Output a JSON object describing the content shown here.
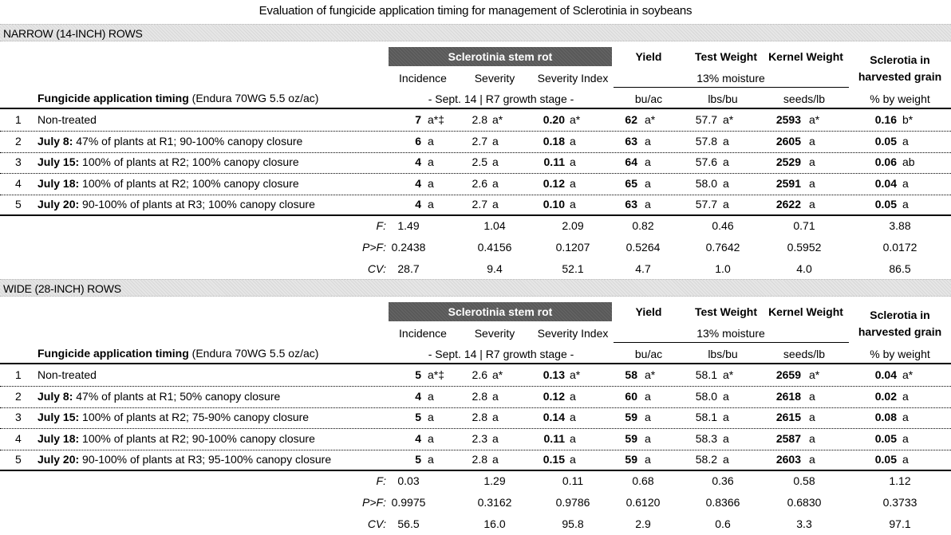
{
  "title": "Evaluation of fungicide application timing for management of Sclerotinia in soybeans",
  "headers": {
    "ssr": "Sclerotinia stem rot",
    "yield": "Yield",
    "test_weight": "Test Weight",
    "kernel_weight": "Kernel Weight",
    "sclerotia_1": "Sclerotia in",
    "sclerotia_2": "harvested grain",
    "incidence": "Incidence",
    "severity": "Severity",
    "severity_index": "Severity Index",
    "moisture": "13% moisture",
    "timing_bold": "Fungicide application timing",
    "timing_rest": " (Endura 70WG 5.5 oz/ac)",
    "date_stage": "- Sept. 14  |  R7 growth stage  -",
    "u_yield": "bu/ac",
    "u_tw": "lbs/bu",
    "u_kw": "seeds/lb",
    "u_scl": "% by weight"
  },
  "sections": [
    {
      "label": "NARROW (14-INCH) ROWS",
      "rows": [
        {
          "num": "1",
          "tbold": "",
          "trest": "Non-treated",
          "inc": "7",
          "inc_l": "a*‡",
          "sev": "2.8",
          "sev_l": "a*",
          "si": "0.20",
          "si_l": "a*",
          "yld": "62",
          "yld_l": "a*",
          "tw": "57.7",
          "tw_l": "a*",
          "kw": "2593",
          "kw_l": "a*",
          "scl": "0.16",
          "scl_l": "b*"
        },
        {
          "num": "2",
          "tbold": "July 8:",
          "trest": " 47% of plants at R1; 90-100% canopy closure",
          "inc": "6",
          "inc_l": "a",
          "sev": "2.7",
          "sev_l": "a",
          "si": "0.18",
          "si_l": "a",
          "yld": "63",
          "yld_l": "a",
          "tw": "57.8",
          "tw_l": "a",
          "kw": "2605",
          "kw_l": "a",
          "scl": "0.05",
          "scl_l": "a"
        },
        {
          "num": "3",
          "tbold": "July 15:",
          "trest": " 100% of plants at R2; 100% canopy closure",
          "inc": "4",
          "inc_l": "a",
          "sev": "2.5",
          "sev_l": "a",
          "si": "0.11",
          "si_l": "a",
          "yld": "64",
          "yld_l": "a",
          "tw": "57.6",
          "tw_l": "a",
          "kw": "2529",
          "kw_l": "a",
          "scl": "0.06",
          "scl_l": "ab"
        },
        {
          "num": "4",
          "tbold": "July 18:",
          "trest": " 100% of plants at R2; 100% canopy closure",
          "inc": "4",
          "inc_l": "a",
          "sev": "2.6",
          "sev_l": "a",
          "si": "0.12",
          "si_l": "a",
          "yld": "65",
          "yld_l": "a",
          "tw": "58.0",
          "tw_l": "a",
          "kw": "2591",
          "kw_l": "a",
          "scl": "0.04",
          "scl_l": "a"
        },
        {
          "num": "5",
          "tbold": "July 20:",
          "trest": " 90-100% of plants at R3; 100% canopy closure",
          "inc": "4",
          "inc_l": "a",
          "sev": "2.7",
          "sev_l": "a",
          "si": "0.10",
          "si_l": "a",
          "yld": "63",
          "yld_l": "a",
          "tw": "57.7",
          "tw_l": "a",
          "kw": "2622",
          "kw_l": "a",
          "scl": "0.05",
          "scl_l": "a"
        }
      ],
      "stats": [
        {
          "label": "F:",
          "inc": "1.49",
          "sev": "1.04",
          "si": "2.09",
          "yld": "0.82",
          "tw": "0.46",
          "kw": "0.71",
          "scl": "3.88"
        },
        {
          "label": "P>F:",
          "inc": "0.2438",
          "sev": "0.4156",
          "si": "0.1207",
          "yld": "0.5264",
          "tw": "0.7642",
          "kw": "0.5952",
          "scl": "0.0172"
        },
        {
          "label": "CV:",
          "inc": "28.7",
          "sev": "9.4",
          "si": "52.1",
          "yld": "4.7",
          "tw": "1.0",
          "kw": "4.0",
          "scl": "86.5"
        }
      ]
    },
    {
      "label": "WIDE (28-INCH) ROWS",
      "rows": [
        {
          "num": "1",
          "tbold": "",
          "trest": "Non-treated",
          "inc": "5",
          "inc_l": "a*‡",
          "sev": "2.6",
          "sev_l": "a*",
          "si": "0.13",
          "si_l": "a*",
          "yld": "58",
          "yld_l": "a*",
          "tw": "58.1",
          "tw_l": "a*",
          "kw": "2659",
          "kw_l": "a*",
          "scl": "0.04",
          "scl_l": "a*"
        },
        {
          "num": "2",
          "tbold": "July 8:",
          "trest": " 47% of plants at R1; 50% canopy closure",
          "inc": "4",
          "inc_l": "a",
          "sev": "2.8",
          "sev_l": "a",
          "si": "0.12",
          "si_l": "a",
          "yld": "60",
          "yld_l": "a",
          "tw": "58.0",
          "tw_l": "a",
          "kw": "2618",
          "kw_l": "a",
          "scl": "0.02",
          "scl_l": "a"
        },
        {
          "num": "3",
          "tbold": "July 15:",
          "trest": " 100% of plants at R2; 75-90% canopy closure",
          "inc": "5",
          "inc_l": "a",
          "sev": "2.8",
          "sev_l": "a",
          "si": "0.14",
          "si_l": "a",
          "yld": "59",
          "yld_l": "a",
          "tw": "58.1",
          "tw_l": "a",
          "kw": "2615",
          "kw_l": "a",
          "scl": "0.08",
          "scl_l": "a"
        },
        {
          "num": "4",
          "tbold": "July 18:",
          "trest": " 100% of plants at R2; 90-100% canopy closure",
          "inc": "4",
          "inc_l": "a",
          "sev": "2.3",
          "sev_l": "a",
          "si": "0.11",
          "si_l": "a",
          "yld": "59",
          "yld_l": "a",
          "tw": "58.3",
          "tw_l": "a",
          "kw": "2587",
          "kw_l": "a",
          "scl": "0.05",
          "scl_l": "a"
        },
        {
          "num": "5",
          "tbold": "July 20:",
          "trest": " 90-100% of plants at R3; 95-100% canopy closure",
          "inc": "5",
          "inc_l": "a",
          "sev": "2.8",
          "sev_l": "a",
          "si": "0.15",
          "si_l": "a",
          "yld": "59",
          "yld_l": "a",
          "tw": "58.2",
          "tw_l": "a",
          "kw": "2603",
          "kw_l": "a",
          "scl": "0.05",
          "scl_l": "a"
        }
      ],
      "stats": [
        {
          "label": "F:",
          "inc": "0.03",
          "sev": "1.29",
          "si": "0.11",
          "yld": "0.68",
          "tw": "0.36",
          "kw": "0.58",
          "scl": "1.12"
        },
        {
          "label": "P>F:",
          "inc": "0.9975",
          "sev": "0.3162",
          "si": "0.9786",
          "yld": "0.6120",
          "tw": "0.8366",
          "kw": "0.6830",
          "scl": "0.3733"
        },
        {
          "label": "CV:",
          "inc": "56.5",
          "sev": "16.0",
          "si": "95.8",
          "yld": "2.9",
          "tw": "0.6",
          "kw": "3.3",
          "scl": "97.1"
        }
      ]
    }
  ]
}
